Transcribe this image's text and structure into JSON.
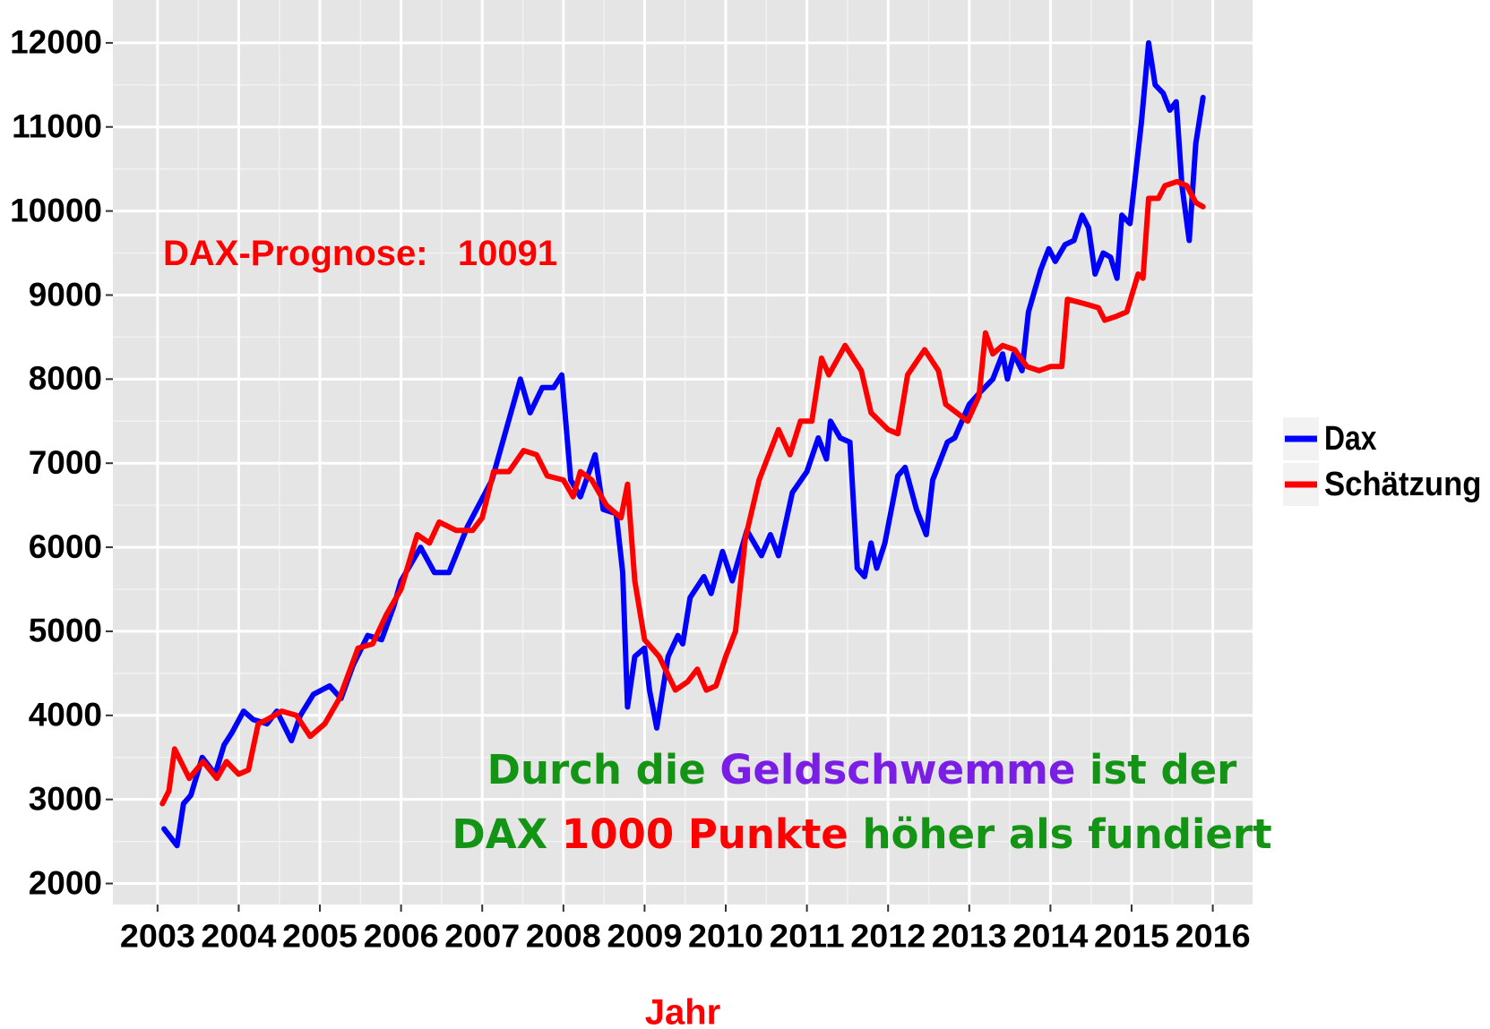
{
  "chart_data": {
    "type": "line",
    "x_label": "Jahr",
    "xlim": [
      2002.45,
      2016.49
    ],
    "ylim": [
      1750,
      12510
    ],
    "xticks": [
      2003,
      2004,
      2005,
      2006,
      2007,
      2008,
      2009,
      2010,
      2011,
      2012,
      2013,
      2014,
      2015,
      2016
    ],
    "yticks": [
      2000,
      3000,
      4000,
      5000,
      6000,
      7000,
      8000,
      9000,
      10000,
      11000,
      12000
    ],
    "grid": true,
    "legend": "right",
    "annotations": [
      [
        {
          "text": "DAX-Prognose:   10091",
          "color": "#ff0000"
        }
      ],
      [
        {
          "text": "Durch die ",
          "color": "#149414"
        },
        {
          "text": "Geldschwemme",
          "color": "#7a1ee6"
        },
        {
          "text": " ist der",
          "color": "#149414"
        }
      ],
      [
        {
          "text": "DAX ",
          "color": "#149414"
        },
        {
          "text": "1000 Punkte",
          "color": "#ff0000"
        },
        {
          "text": " höher als fundiert",
          "color": "#149414"
        }
      ]
    ],
    "series": [
      {
        "name": "Dax",
        "color": "#0000ff",
        "x": [
          2003.08,
          2003.24,
          2003.32,
          2003.41,
          2003.55,
          2003.71,
          2003.82,
          2003.92,
          2004.06,
          2004.18,
          2004.35,
          2004.47,
          2004.65,
          2004.76,
          2004.92,
          2005.12,
          2005.26,
          2005.41,
          2005.59,
          2005.76,
          2005.91,
          2006.0,
          2006.24,
          2006.41,
          2006.59,
          2006.82,
          2007.12,
          2007.47,
          2007.59,
          2007.74,
          2007.88,
          2007.98,
          2008.09,
          2008.21,
          2008.39,
          2008.49,
          2008.65,
          2008.73,
          2008.79,
          2008.88,
          2009.0,
          2009.06,
          2009.15,
          2009.29,
          2009.41,
          2009.47,
          2009.56,
          2009.73,
          2009.82,
          2009.96,
          2010.08,
          2010.26,
          2010.44,
          2010.55,
          2010.65,
          2010.82,
          2011.0,
          2011.14,
          2011.24,
          2011.29,
          2011.41,
          2011.53,
          2011.62,
          2011.71,
          2011.79,
          2011.86,
          2011.96,
          2012.12,
          2012.21,
          2012.35,
          2012.47,
          2012.55,
          2012.73,
          2012.82,
          2013.0,
          2013.14,
          2013.29,
          2013.41,
          2013.47,
          2013.55,
          2013.65,
          2013.73,
          2013.88,
          2013.98,
          2014.06,
          2014.18,
          2014.29,
          2014.39,
          2014.47,
          2014.55,
          2014.65,
          2014.74,
          2014.82,
          2014.88,
          2014.98,
          2015.12,
          2015.21,
          2015.29,
          2015.39,
          2015.47,
          2015.55,
          2015.62,
          2015.71,
          2015.79,
          2015.88
        ],
        "values": [
          2650,
          2450,
          2950,
          3050,
          3500,
          3300,
          3650,
          3800,
          4050,
          3950,
          3900,
          4050,
          3700,
          4000,
          4250,
          4350,
          4200,
          4600,
          4950,
          4900,
          5300,
          5600,
          6000,
          5700,
          5700,
          6250,
          6800,
          8000,
          7600,
          7900,
          7900,
          8050,
          6800,
          6600,
          7100,
          6450,
          6400,
          5700,
          4100,
          4700,
          4800,
          4300,
          3850,
          4700,
          4950,
          4850,
          5400,
          5650,
          5450,
          5950,
          5600,
          6200,
          5900,
          6150,
          5900,
          6650,
          6900,
          7300,
          7050,
          7500,
          7300,
          7250,
          5750,
          5650,
          6050,
          5750,
          6050,
          6850,
          6950,
          6450,
          6150,
          6800,
          7250,
          7300,
          7700,
          7850,
          8000,
          8300,
          8000,
          8300,
          8100,
          8800,
          9300,
          9550,
          9400,
          9600,
          9650,
          9950,
          9800,
          9250,
          9500,
          9450,
          9200,
          9950,
          9850,
          11050,
          12000,
          11500,
          11400,
          11200,
          11300,
          10300,
          9650,
          10800,
          11350
        ]
      },
      {
        "name": "Schätzung",
        "color": "#ff0000",
        "x": [
          2003.06,
          2003.14,
          2003.21,
          2003.39,
          2003.56,
          2003.73,
          2003.85,
          2004.0,
          2004.12,
          2004.24,
          2004.35,
          2004.53,
          2004.71,
          2004.88,
          2005.06,
          2005.24,
          2005.47,
          2005.65,
          2005.82,
          2006.0,
          2006.2,
          2006.35,
          2006.47,
          2006.68,
          2006.88,
          2007.0,
          2007.14,
          2007.33,
          2007.51,
          2007.67,
          2007.8,
          2008.0,
          2008.12,
          2008.21,
          2008.35,
          2008.53,
          2008.71,
          2008.79,
          2008.88,
          2009.0,
          2009.18,
          2009.38,
          2009.53,
          2009.65,
          2009.76,
          2009.88,
          2010.0,
          2010.12,
          2010.24,
          2010.41,
          2010.65,
          2010.79,
          2010.92,
          2011.06,
          2011.18,
          2011.27,
          2011.47,
          2011.67,
          2011.79,
          2012.0,
          2012.12,
          2012.24,
          2012.45,
          2012.62,
          2012.71,
          2012.98,
          2013.12,
          2013.2,
          2013.29,
          2013.41,
          2013.56,
          2013.71,
          2013.86,
          2014.0,
          2014.14,
          2014.21,
          2014.41,
          2014.59,
          2014.67,
          2014.82,
          2014.94,
          2015.08,
          2015.14,
          2015.21,
          2015.33,
          2015.41,
          2015.56,
          2015.68,
          2015.79,
          2015.88
        ],
        "values": [
          2950,
          3100,
          3600,
          3250,
          3450,
          3250,
          3450,
          3300,
          3350,
          3900,
          3950,
          4050,
          4000,
          3750,
          3900,
          4200,
          4800,
          4850,
          5200,
          5500,
          6150,
          6050,
          6300,
          6200,
          6200,
          6350,
          6900,
          6900,
          7150,
          7100,
          6850,
          6800,
          6600,
          6900,
          6800,
          6500,
          6350,
          6750,
          5600,
          4900,
          4700,
          4300,
          4400,
          4550,
          4300,
          4350,
          4700,
          5000,
          6100,
          6800,
          7400,
          7100,
          7500,
          7500,
          8250,
          8050,
          8400,
          8100,
          7600,
          7400,
          7350,
          8050,
          8350,
          8100,
          7700,
          7500,
          7800,
          8550,
          8300,
          8400,
          8350,
          8150,
          8100,
          8150,
          8150,
          8950,
          8900,
          8850,
          8700,
          8750,
          8800,
          9250,
          9200,
          10150,
          10150,
          10300,
          10350,
          10300,
          10100,
          10050
        ]
      }
    ]
  }
}
